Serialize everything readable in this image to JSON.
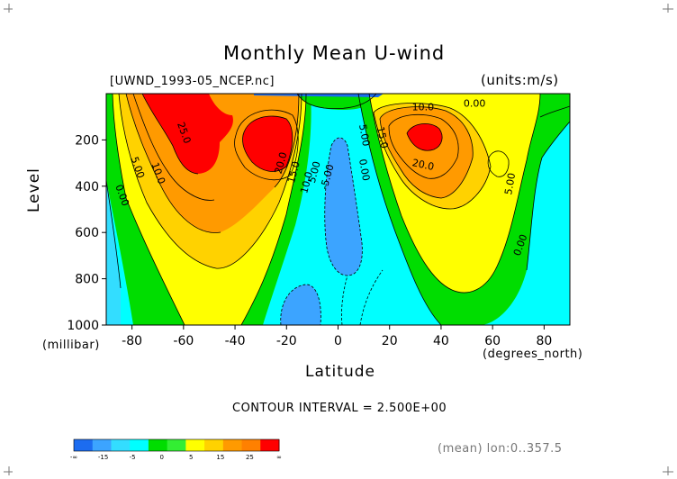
{
  "chart_data": {
    "type": "contour",
    "title": "Monthly Mean U-wind",
    "subtitle_left": "[UWND_1993-05_NCEP.nc]",
    "subtitle_right": "(units:m/s)",
    "xlabel": "Latitude",
    "xunit": "(degrees_north)",
    "ylabel": "Level",
    "yunit": "(millibar)",
    "xlim": [
      -90,
      90
    ],
    "ylim": [
      1000,
      0
    ],
    "xticks": [
      -80,
      -60,
      -40,
      -20,
      0,
      20,
      40,
      60,
      80
    ],
    "yticks": [
      200,
      400,
      600,
      800,
      1000
    ],
    "contour_interval_text": "CONTOUR INTERVAL = 2.500E+00",
    "footnote": "(mean) lon:0..357.5",
    "contour_labels": [
      {
        "text": "10.0",
        "lat": 33,
        "lev": 60,
        "rot": 0
      },
      {
        "text": "0.00",
        "lat": 53,
        "lev": 45,
        "rot": 0
      },
      {
        "text": "5.00",
        "lat": 10,
        "lev": 180,
        "rot": 80
      },
      {
        "text": "0.00",
        "lat": 10,
        "lev": 330,
        "rot": 80
      },
      {
        "text": "15.0",
        "lat": 17,
        "lev": 190,
        "rot": 78
      },
      {
        "text": "20.0",
        "lat": 33,
        "lev": 310,
        "rot": 12
      },
      {
        "text": "5.00",
        "lat": 67,
        "lev": 390,
        "rot": -80
      },
      {
        "text": "0.00",
        "lat": 71,
        "lev": 655,
        "rot": -70
      },
      {
        "text": "-5.00",
        "lat": -4,
        "lev": 360,
        "rot": -75
      },
      {
        "text": "25.0",
        "lat": -60,
        "lev": 170,
        "rot": 70
      },
      {
        "text": "10.0",
        "lat": -70,
        "lev": 345,
        "rot": 70
      },
      {
        "text": "5.00",
        "lat": -78,
        "lev": 320,
        "rot": 70
      },
      {
        "text": "0.00",
        "lat": -84,
        "lev": 440,
        "rot": 70
      },
      {
        "text": "20.0",
        "lat": -22,
        "lev": 300,
        "rot": -75
      },
      {
        "text": "15.0",
        "lat": -17,
        "lev": 340,
        "rot": -75
      },
      {
        "text": "10.0",
        "lat": -12,
        "lev": 385,
        "rot": -75
      },
      {
        "text": "5.00",
        "lat": -9,
        "lev": 340,
        "rot": -75
      }
    ],
    "colorbar": {
      "tick_labels": [
        "-∞",
        "-15",
        "-5",
        "0",
        "5",
        "15",
        "25",
        "∞"
      ],
      "colors": [
        "#1c6cf0",
        "#3ca4ff",
        "#33ddff",
        "#00ffff",
        "#00dd00",
        "#33ee33",
        "#ffff00",
        "#ffd200",
        "#ff9a00",
        "#ff8000",
        "#ff0000"
      ],
      "levels": [
        -15,
        -10,
        -5,
        -2.5,
        0,
        5,
        10,
        15,
        20,
        25
      ]
    }
  }
}
